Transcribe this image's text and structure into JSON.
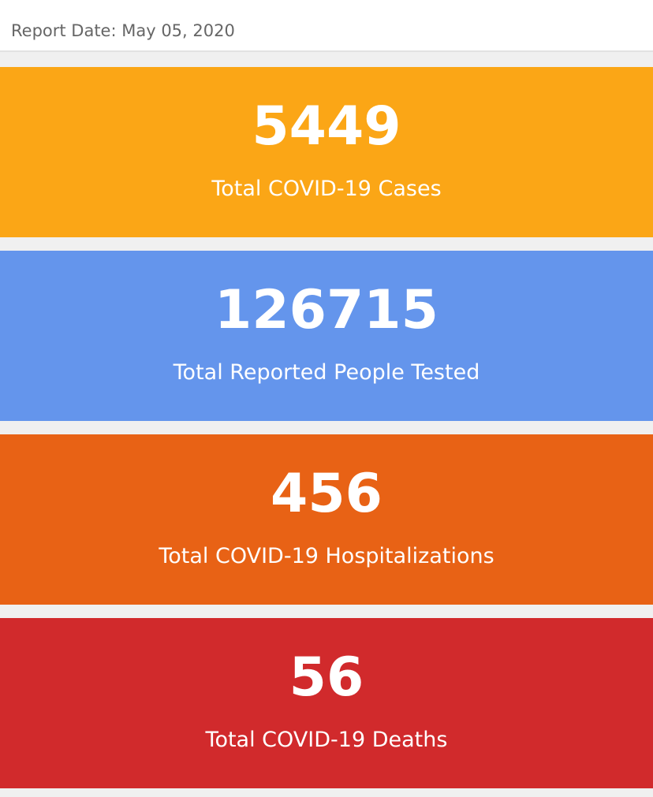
{
  "header": {
    "report_date": "Report Date: May 05, 2020"
  },
  "cards": [
    {
      "value": 5449,
      "label": "Total COVID-19 Cases"
    },
    {
      "value": 126715,
      "label": "Total Reported People Tested"
    },
    {
      "value": 456,
      "label": "Total COVID-19 Hospitalizations"
    },
    {
      "value": 56,
      "label": "Total COVID-19 Deaths"
    }
  ]
}
